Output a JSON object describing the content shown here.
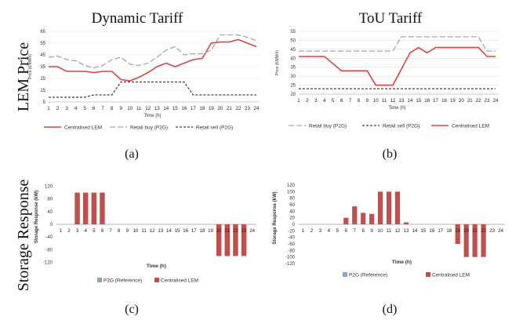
{
  "row_labels": {
    "top": "LEM Price",
    "bottom": "Storage Response"
  },
  "colors": {
    "lem": "#d64545",
    "buy": "#a6a6a6",
    "sell": "#404040",
    "p2g": "#8da0c8",
    "axis": "#bfbfbf",
    "grid": "#e6e6e6",
    "bar": "#c0504d",
    "tou_grid": "#d9d9d9"
  },
  "chart_data": [
    {
      "id": "a",
      "type": "line",
      "title": "Dynamic Tariff",
      "xlabel": "Time (h)",
      "ylabel": "Price (€/MWh)",
      "caption": "(a)",
      "x": [
        1,
        2,
        3,
        4,
        5,
        6,
        7,
        8,
        9,
        10,
        11,
        12,
        13,
        14,
        15,
        16,
        17,
        18,
        19,
        20,
        21,
        22,
        23,
        24
      ],
      "ylim": [
        5,
        65
      ],
      "yticks": [
        5,
        15,
        25,
        35,
        45,
        55,
        65
      ],
      "grid": true,
      "legend_position": "bottom",
      "series": [
        {
          "name": "Centralised LEM",
          "key": "lem",
          "values": [
            35,
            35,
            31,
            31,
            31,
            30,
            31,
            31,
            24,
            23,
            26,
            30,
            35,
            38,
            35,
            38,
            41,
            42,
            55,
            56,
            56,
            58,
            55,
            52
          ]
        },
        {
          "name": "Retail buy (P2G)",
          "key": "buy",
          "values": [
            43,
            44,
            41,
            40,
            36,
            34,
            36,
            41,
            43,
            37,
            36,
            38,
            43,
            49,
            52,
            45,
            46,
            46,
            49,
            62,
            62,
            62,
            60,
            57
          ]
        },
        {
          "name": "Retail sell (P2G)",
          "key": "sell",
          "values": [
            9,
            9,
            9,
            9,
            9,
            11,
            11,
            11,
            22,
            22,
            22,
            22,
            22,
            22,
            22,
            22,
            11,
            11,
            11,
            11,
            11,
            11,
            11,
            11
          ]
        }
      ]
    },
    {
      "id": "b",
      "type": "line",
      "title": "ToU Tariff",
      "xlabel": "Time (h)",
      "ylabel": "Price (€/MWh)",
      "caption": "(b)",
      "x": [
        1,
        2,
        3,
        4,
        5,
        6,
        7,
        8,
        9,
        10,
        11,
        12,
        13,
        14,
        15,
        16,
        17,
        18,
        19,
        20,
        21,
        22,
        23,
        24
      ],
      "ylim": [
        20,
        55
      ],
      "yticks": [
        20,
        25,
        30,
        35,
        40,
        45,
        50,
        55
      ],
      "grid": true,
      "legend_position": "bottom",
      "series": [
        {
          "name": "Retail buy (P2G)",
          "key": "buy",
          "values": [
            44,
            44,
            44,
            44,
            44,
            44,
            44,
            44,
            44,
            44,
            44,
            44,
            52,
            52,
            52,
            52,
            52,
            52,
            52,
            52,
            52,
            52,
            44,
            44
          ]
        },
        {
          "name": "Retail sell (P2G)",
          "key": "sell",
          "values": [
            23,
            23,
            23,
            23,
            23,
            23,
            23,
            23,
            23,
            23,
            23,
            23,
            23,
            23,
            23,
            23,
            23,
            23,
            23,
            23,
            23,
            23,
            23,
            23
          ]
        },
        {
          "name": "Centralised LEM",
          "key": "lem",
          "values": [
            41,
            41,
            41,
            41,
            37,
            33,
            33,
            33,
            33,
            25,
            25,
            25,
            34,
            43,
            46,
            43,
            46,
            46,
            46,
            46,
            46,
            46,
            41,
            41
          ]
        }
      ]
    },
    {
      "id": "c",
      "type": "bar",
      "xlabel": "Time (h)",
      "ylabel": "Storage Response (kW)",
      "caption": "(c)",
      "x": [
        1,
        2,
        3,
        4,
        5,
        6,
        7,
        8,
        9,
        10,
        11,
        12,
        13,
        14,
        15,
        16,
        17,
        18,
        19,
        20,
        21,
        22,
        23,
        24
      ],
      "ylim": [
        -120,
        120
      ],
      "yticks": [
        120,
        80,
        40,
        0,
        -40,
        -80,
        -120
      ],
      "grid": false,
      "legend_position": "bottom",
      "series": [
        {
          "name": "P2G (Reference)",
          "key": "p2g",
          "values": [
            0,
            0,
            0,
            0,
            0,
            0,
            0,
            0,
            0,
            0,
            0,
            0,
            0,
            0,
            0,
            0,
            0,
            0,
            0,
            0,
            0,
            0,
            0,
            0
          ]
        },
        {
          "name": "Centralised LEM",
          "key": "bar",
          "values": [
            0,
            0,
            100,
            100,
            100,
            100,
            0,
            0,
            0,
            0,
            0,
            0,
            0,
            0,
            0,
            0,
            0,
            0,
            0,
            -100,
            -100,
            -100,
            -100,
            0
          ]
        }
      ]
    },
    {
      "id": "d",
      "type": "bar",
      "xlabel": "Time (h)",
      "ylabel": "Storage Response (kW)",
      "caption": "(d)",
      "x": [
        1,
        2,
        3,
        4,
        5,
        6,
        7,
        8,
        9,
        10,
        11,
        12,
        13,
        14,
        15,
        16,
        17,
        18,
        19,
        20,
        21,
        22,
        23,
        24
      ],
      "ylim": [
        -120,
        120
      ],
      "yticks": [
        120,
        100,
        80,
        60,
        40,
        20,
        0,
        -20,
        -40,
        -60,
        -80,
        -100,
        -120
      ],
      "grid": false,
      "legend_position": "bottom",
      "series": [
        {
          "name": "P2G (Reference)",
          "key": "p2g",
          "values": [
            0,
            0,
            0,
            0,
            0,
            0,
            0,
            0,
            0,
            0,
            0,
            0,
            0,
            0,
            0,
            0,
            0,
            0,
            0,
            0,
            0,
            0,
            0,
            0
          ]
        },
        {
          "name": "Centralised LEM",
          "key": "bar",
          "values": [
            0,
            0,
            0,
            0,
            0,
            20,
            55,
            35,
            32,
            100,
            100,
            100,
            6,
            0,
            0,
            0,
            0,
            0,
            -60,
            -100,
            -100,
            -100,
            0,
            0
          ]
        }
      ]
    }
  ]
}
